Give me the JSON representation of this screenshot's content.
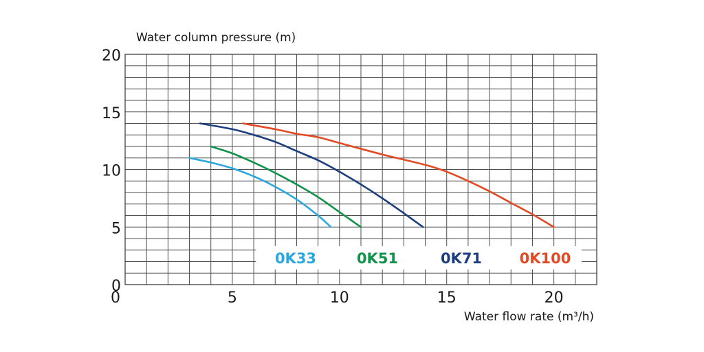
{
  "chart_data": {
    "type": "line",
    "xlabel": "Water flow rate (m³/h)",
    "ylabel": "Water column pressure (m)",
    "xlim": [
      0,
      22
    ],
    "ylim": [
      0,
      20
    ],
    "x_ticks": [
      "0",
      "5",
      "10",
      "15",
      "20"
    ],
    "y_ticks": [
      "0",
      "5",
      "10",
      "15",
      "20"
    ],
    "grid": true,
    "legend_position": "bottom-inside",
    "series": [
      {
        "name": "0K33",
        "color": "#2aa7df",
        "points": [
          [
            3,
            11
          ],
          [
            4,
            10.6
          ],
          [
            5,
            10.1
          ],
          [
            6,
            9.4
          ],
          [
            7,
            8.5
          ],
          [
            8,
            7.4
          ],
          [
            9,
            6
          ],
          [
            9.6,
            5
          ]
        ]
      },
      {
        "name": "0K51",
        "color": "#10924a",
        "points": [
          [
            4,
            12
          ],
          [
            5,
            11.4
          ],
          [
            6,
            10.6
          ],
          [
            7,
            9.7
          ],
          [
            8,
            8.7
          ],
          [
            9,
            7.6
          ],
          [
            10,
            6.3
          ],
          [
            11,
            5
          ]
        ]
      },
      {
        "name": "0K71",
        "color": "#1c3d7e",
        "points": [
          [
            3.5,
            14
          ],
          [
            5,
            13.5
          ],
          [
            6,
            13
          ],
          [
            7,
            12.4
          ],
          [
            8,
            11.6
          ],
          [
            9,
            10.8
          ],
          [
            10,
            9.8
          ],
          [
            11,
            8.7
          ],
          [
            12,
            7.5
          ],
          [
            13,
            6.2
          ],
          [
            13.9,
            5
          ]
        ]
      },
      {
        "name": "0K100",
        "color": "#e24a24",
        "points": [
          [
            5.5,
            14
          ],
          [
            7,
            13.5
          ],
          [
            8,
            13.1
          ],
          [
            9,
            12.8
          ],
          [
            10,
            12.3
          ],
          [
            12,
            11.3
          ],
          [
            14,
            10.4
          ],
          [
            15,
            9.8
          ],
          [
            16,
            9
          ],
          [
            17,
            8.1
          ],
          [
            18,
            7.1
          ],
          [
            19,
            6.1
          ],
          [
            20,
            5
          ]
        ]
      }
    ]
  }
}
